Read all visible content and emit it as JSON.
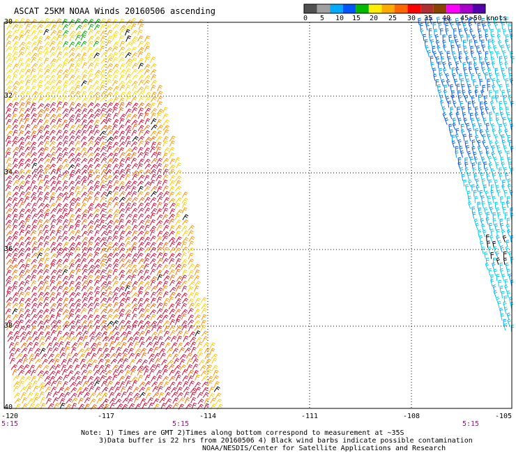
{
  "title": "ASCAT 25KM NOAA Winds 20160506 ascending",
  "legend": {
    "colors": [
      "#505050",
      "#a0a0a0",
      "#00aaff",
      "#0055ff",
      "#00bb00",
      "#ffee00",
      "#ffaa00",
      "#ff6600",
      "#ff0000",
      "#b03030",
      "#884400",
      "#ff00ff",
      "#aa00cc",
      "#5500aa"
    ],
    "labels": [
      "0",
      "5",
      "10",
      "15",
      "20",
      "25",
      "30",
      "35",
      "40",
      "45",
      ">50 knots"
    ]
  },
  "lat_labels": [
    "30",
    "32",
    "34",
    "36",
    "38",
    "40"
  ],
  "lon_labels": [
    "-120",
    "-117",
    "-114",
    "-111",
    "-108",
    "-105"
  ],
  "time_labels": [
    "5:15",
    "5:15",
    "5:15"
  ],
  "notes": {
    "line1": "Note: 1) Times are GMT 2)Times along bottom correspond to measurement at ~35S",
    "line2": "3)Data buffer is 22 hrs from 20160506 4) Black wind barbs indicate possible contamination",
    "line3": "NOAA/NESDIS/Center for Satellite Applications and Research"
  }
}
